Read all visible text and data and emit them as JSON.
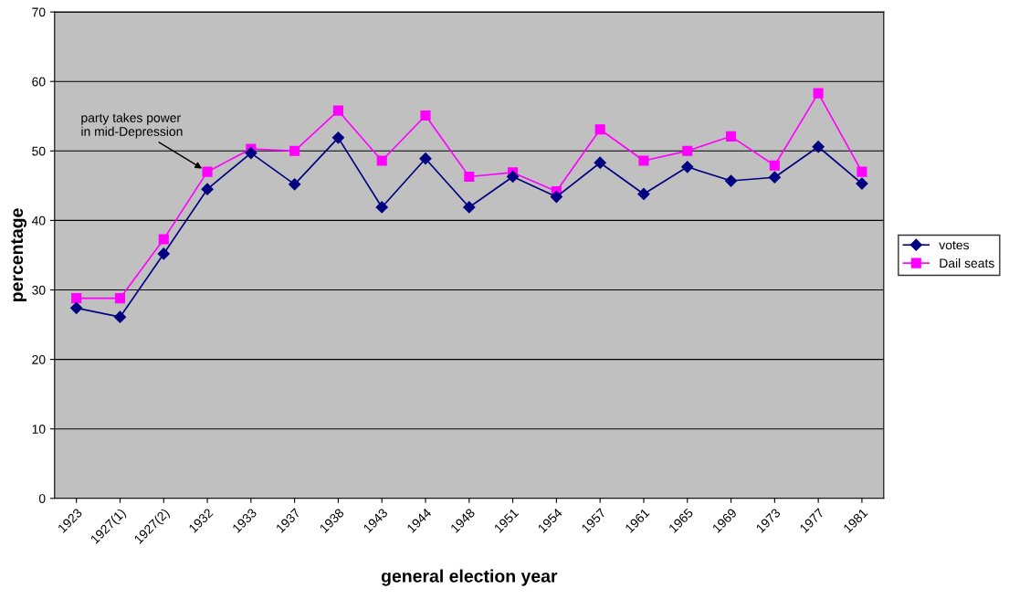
{
  "chart_data": {
    "type": "line",
    "xlabel": "general election year",
    "ylabel": "percentage",
    "categories": [
      "1923",
      "1927(1)",
      "1927(2)",
      "1932",
      "1933",
      "1937",
      "1938",
      "1943",
      "1944",
      "1948",
      "1951",
      "1954",
      "1957",
      "1961",
      "1965",
      "1969",
      "1973",
      "1977",
      "1981"
    ],
    "series": [
      {
        "name": "votes",
        "color": "#000080",
        "marker": "diamond",
        "values": [
          27.4,
          26.1,
          35.2,
          44.5,
          49.7,
          45.2,
          51.9,
          41.9,
          48.9,
          41.9,
          46.3,
          43.4,
          48.3,
          43.8,
          47.7,
          45.7,
          46.2,
          50.6,
          45.3
        ]
      },
      {
        "name": "Dail seats",
        "color": "#ff00ff",
        "marker": "square",
        "values": [
          28.8,
          28.8,
          37.3,
          47.0,
          50.3,
          50.0,
          55.8,
          48.6,
          55.1,
          46.3,
          46.9,
          44.2,
          53.1,
          48.6,
          50.0,
          52.1,
          47.9,
          58.3,
          47.0
        ]
      }
    ],
    "ylim": [
      0,
      70
    ],
    "yticks": [
      0,
      10,
      20,
      30,
      40,
      50,
      60,
      70
    ],
    "grid": "y",
    "legend": "right",
    "line_style": "solid",
    "annotations": [
      {
        "text": "party takes power\nin mid-Depression",
        "x": "1932",
        "y": 47.0
      }
    ]
  }
}
